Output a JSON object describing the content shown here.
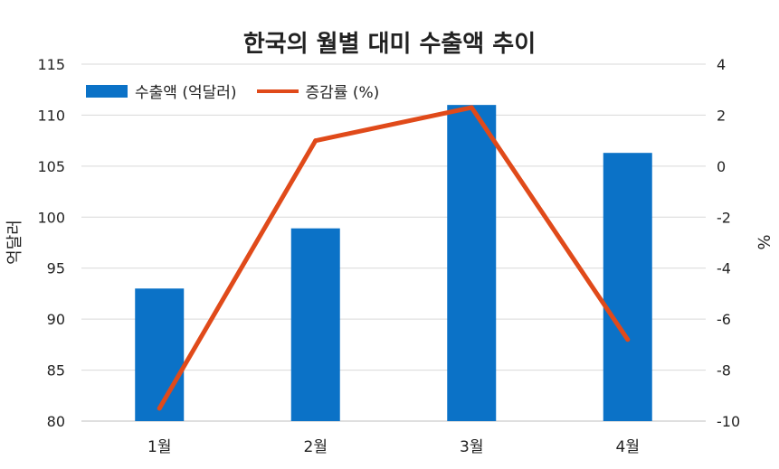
{
  "chart_data": {
    "type": "bar+line",
    "title": "한국의 월별 대미 수출액 추이",
    "categories": [
      "1월",
      "2월",
      "3월",
      "4월"
    ],
    "series": [
      {
        "name": "수출액 (억달러)",
        "type": "bar",
        "axis": "left",
        "values": [
          93,
          98.9,
          111,
          106.3
        ]
      },
      {
        "name": "증감률 (%)",
        "type": "line",
        "axis": "right",
        "values": [
          -9.5,
          1.0,
          2.3,
          -6.8
        ]
      }
    ],
    "ylabel_left": "억달러",
    "ylabel_right": "%",
    "ylim_left": [
      80,
      115
    ],
    "yticks_left": [
      80,
      85,
      90,
      95,
      100,
      105,
      110,
      115
    ],
    "ylim_right": [
      -10,
      4
    ],
    "yticks_right": [
      -10,
      -8,
      -6,
      -4,
      -2,
      0,
      2,
      4
    ],
    "grid": true,
    "legend_placement": "top-left",
    "colors": {
      "bar": "#0b72c7",
      "line": "#e04a1a",
      "grid": "#d9d9d9"
    }
  }
}
